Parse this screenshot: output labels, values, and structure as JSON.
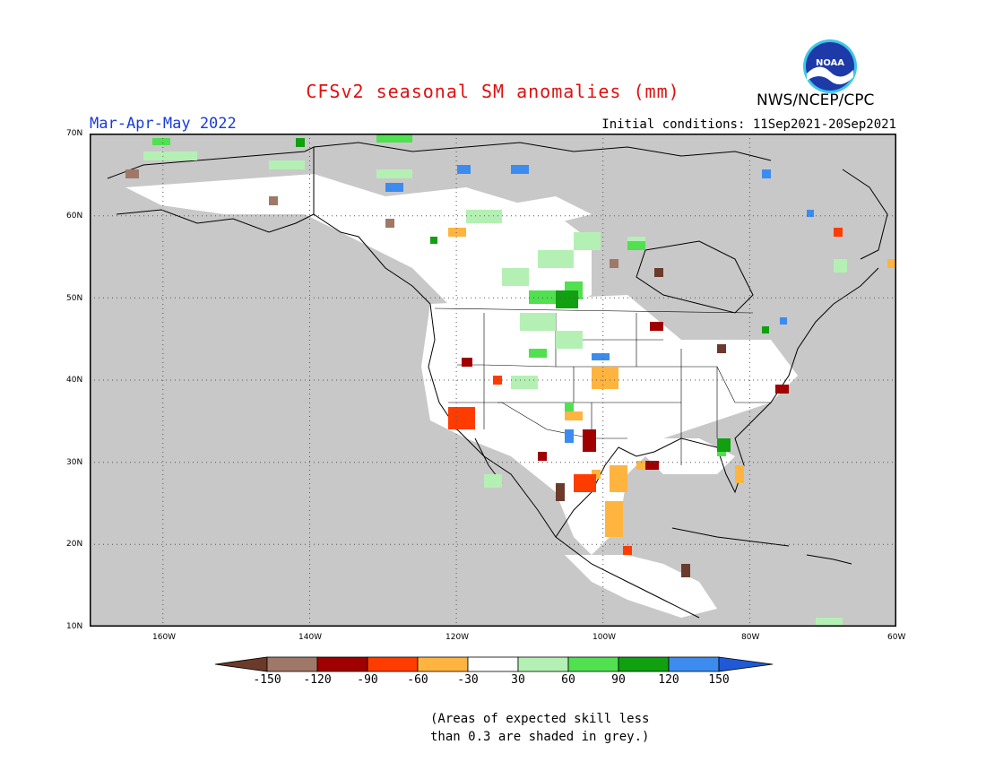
{
  "header": {
    "title": "CFSv2 seasonal SM anomalies (mm)",
    "period": "Mar-Apr-May 2022",
    "initial_conditions": "Initial conditions: 11Sep2021-20Sep2021",
    "agency": "NWS/NCEP/CPC",
    "logo_text": "NOAA"
  },
  "map": {
    "lat_labels": [
      "70N",
      "60N",
      "50N",
      "40N",
      "30N",
      "20N",
      "10N"
    ],
    "lon_labels": [
      "160W",
      "140W",
      "120W",
      "100W",
      "80W",
      "60W"
    ],
    "lat_range": [
      10,
      70
    ],
    "lon_range": [
      -170,
      -60
    ],
    "grid": "dotted",
    "land_color": "#c8c8c8",
    "ocean_color": "#c8c8c8"
  },
  "legend": {
    "ticks": [
      "-150",
      "-120",
      "-90",
      "-60",
      "-30",
      "30",
      "60",
      "90",
      "120",
      "150"
    ],
    "colors": [
      "#6b3a2a",
      "#a07868",
      "#a00000",
      "#ff3c00",
      "#ffb440",
      "#ffffff",
      "#b4f0b4",
      "#50e050",
      "#10a010",
      "#3c8cf0",
      "#1e5ad8"
    ]
  },
  "note": {
    "line1": "(Areas of expected skill less",
    "line2": "than 0.3 are shaded in grey.)"
  }
}
